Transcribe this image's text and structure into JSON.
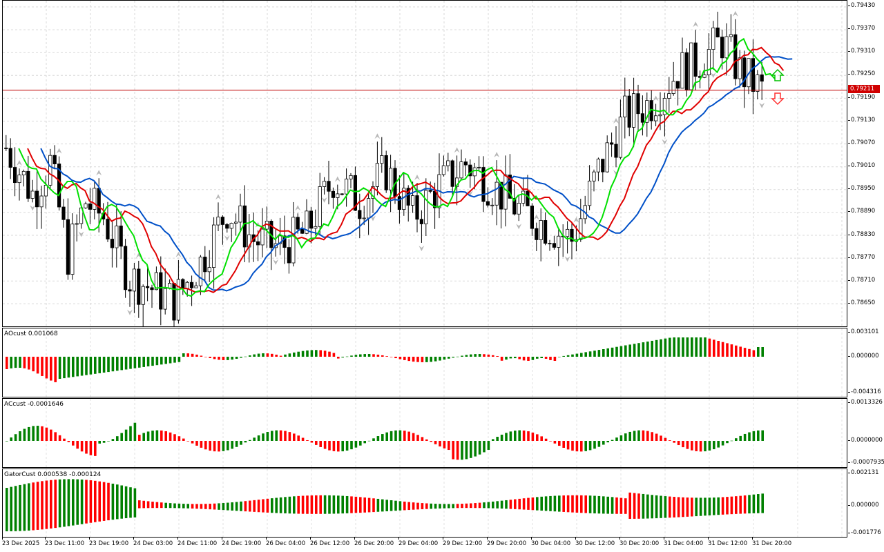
{
  "colors": {
    "bull_candle": "#ffffff",
    "bear_candle": "#000000",
    "jaw": "#0050c8",
    "teeth": "#e00000",
    "lips": "#00e000",
    "ao_up": "#008000",
    "ao_down": "#ff0000",
    "price_line": "#c00000",
    "arrow_up": "#00c000",
    "arrow_down": "#ff3030"
  },
  "main_chart": {
    "price_axis": [
      "0.79430",
      "0.79370",
      "0.79310",
      "0.79250",
      "0.79190",
      "0.79130",
      "0.79070",
      "0.79010",
      "0.78950",
      "0.78890",
      "0.78830",
      "0.78770",
      "0.78710",
      "0.78650"
    ],
    "current_price": "0.79211",
    "price_range": [
      0.7859,
      0.79445
    ]
  },
  "ao_pane": {
    "title": "AOcust 0.001068",
    "axis": [
      "0.003101",
      "0.000000",
      "-0.004316"
    ]
  },
  "ac_pane": {
    "title": "ACcust -0.0001646",
    "axis": [
      "0.0013326",
      "0.0000000",
      "-0.0007935"
    ]
  },
  "gator_pane": {
    "title": "GatorCust 0.000538 -0.000124",
    "axis": [
      "0.002131",
      "0.000000",
      "-0.001776"
    ]
  },
  "time_axis": [
    "23 Dec 2025",
    "23 Dec 11:00",
    "23 Dec 19:00",
    "24 Dec 03:00",
    "24 Dec 11:00",
    "24 Dec 19:00",
    "26 Dec 04:00",
    "26 Dec 12:00",
    "26 Dec 20:00",
    "29 Dec 04:00",
    "29 Dec 12:00",
    "29 Dec 20:00",
    "30 Dec 04:00",
    "30 Dec 12:00",
    "30 Dec 20:00",
    "31 Dec 04:00",
    "31 Dec 12:00",
    "31 Dec 20:00"
  ]
}
